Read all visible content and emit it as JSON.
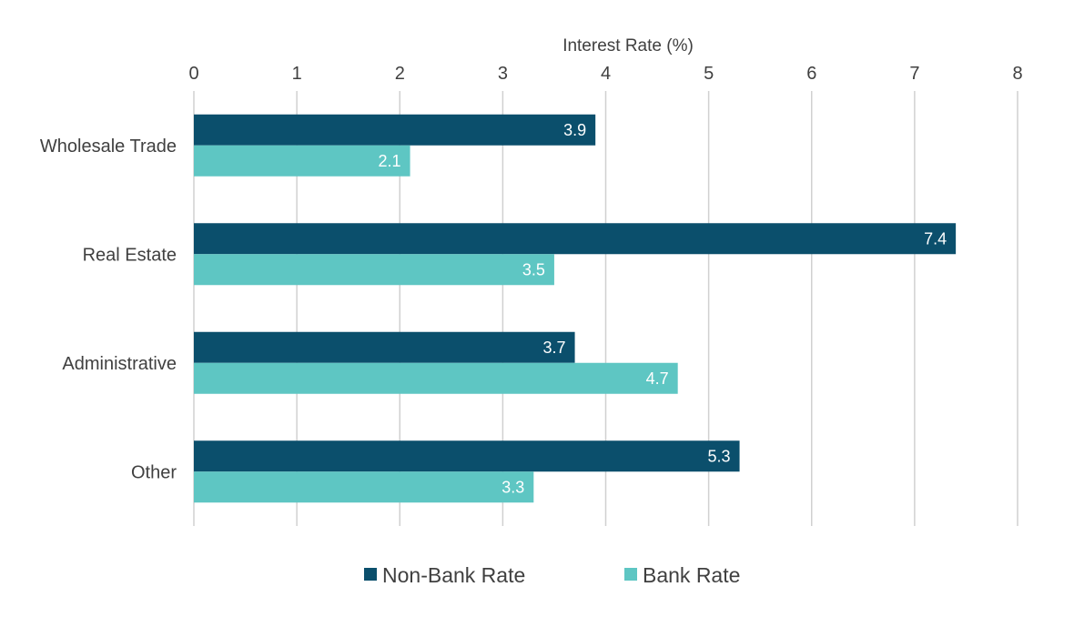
{
  "chart_data": {
    "type": "bar",
    "orientation": "horizontal",
    "title": "",
    "xlabel": "Interest Rate (%)",
    "ylabel": "",
    "xlim": [
      0,
      8
    ],
    "ticks": [
      "0",
      "1",
      "2",
      "3",
      "4",
      "5",
      "6",
      "7",
      "8"
    ],
    "tick_values": [
      0,
      1,
      2,
      3,
      4,
      5,
      6,
      7,
      8
    ],
    "categories": [
      "Wholesale Trade",
      "Real Estate",
      "Administrative",
      "Other"
    ],
    "series": [
      {
        "name": "Non-Bank Rate",
        "color": "#0b4f6c",
        "values": [
          3.9,
          7.4,
          3.7,
          5.3
        ],
        "labels": [
          "3.9",
          "7.4",
          "3.7",
          "5.3"
        ]
      },
      {
        "name": "Bank Rate",
        "color": "#5ec6c3",
        "values": [
          2.1,
          3.5,
          4.7,
          3.3
        ],
        "labels": [
          "2.1",
          "3.5",
          "4.7",
          "3.3"
        ]
      }
    ],
    "grid": true,
    "axis_position": "top",
    "legend": "bottom"
  }
}
